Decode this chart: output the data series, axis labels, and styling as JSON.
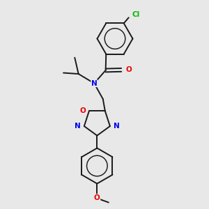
{
  "background_color": "#e8e8e8",
  "bond_color": "#1a1a1a",
  "atom_colors": {
    "N": "#0000ee",
    "O": "#ee0000",
    "Cl": "#00bb00",
    "C": "#1a1a1a"
  },
  "figsize": [
    3.0,
    3.0
  ],
  "dpi": 100,
  "lw": 1.4,
  "fs": 7.5
}
